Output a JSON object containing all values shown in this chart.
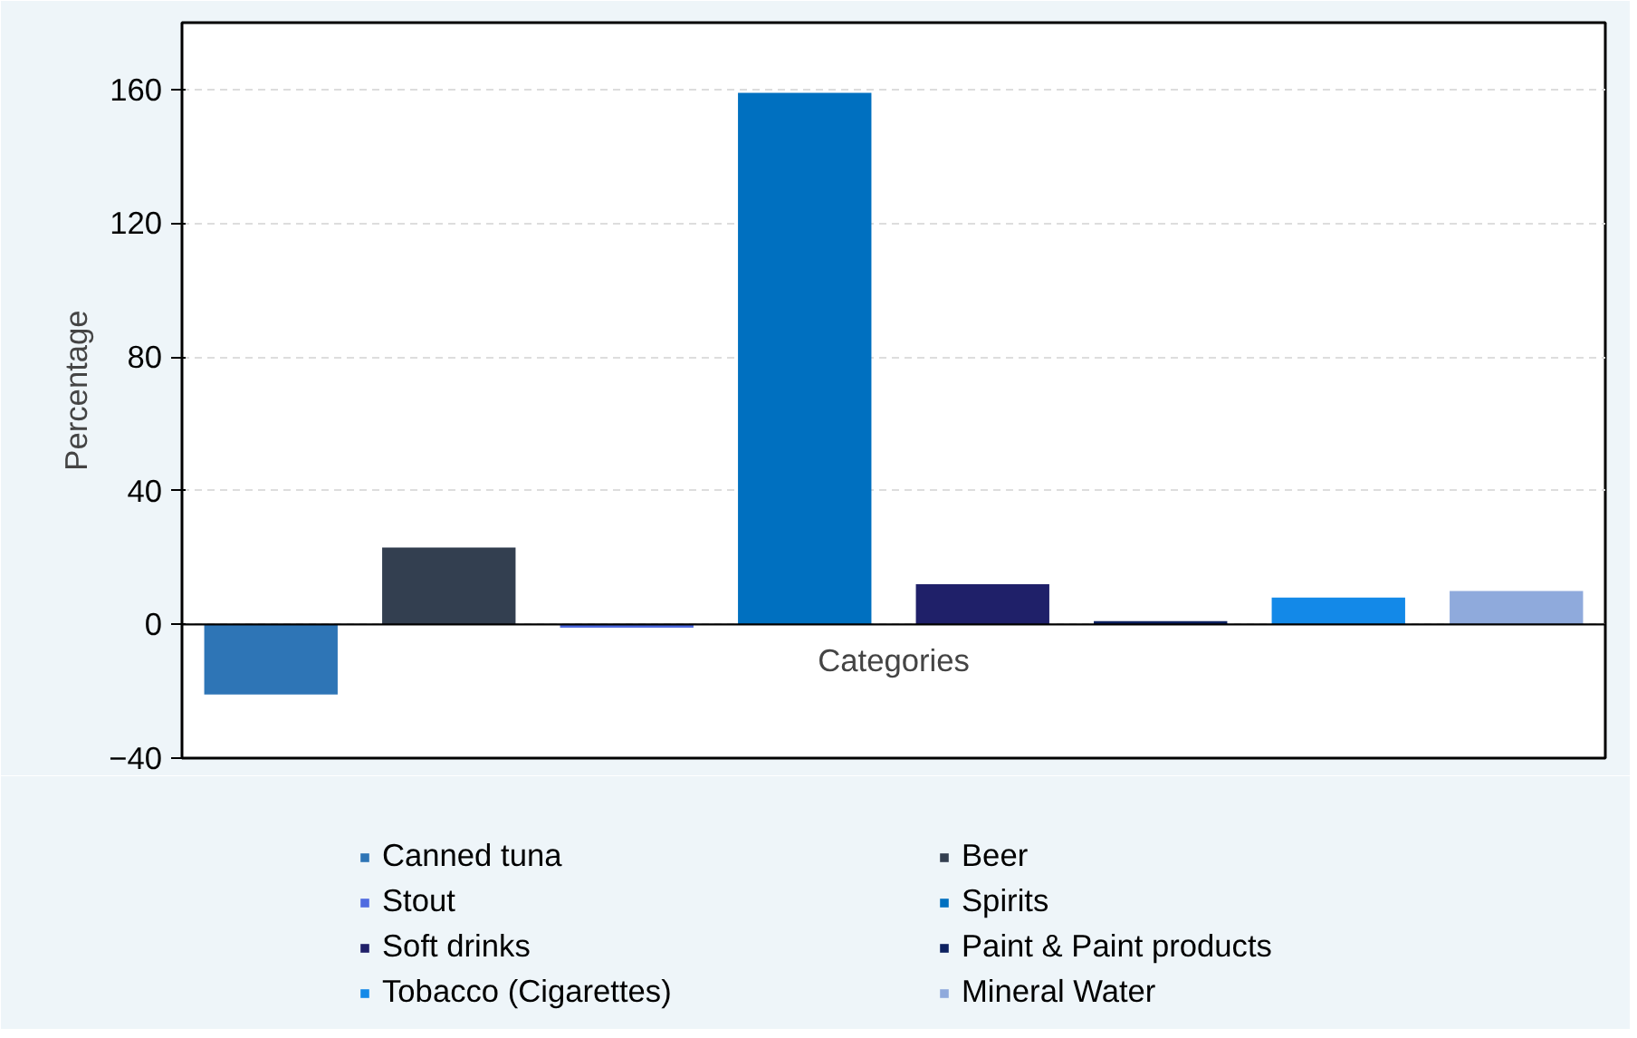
{
  "chart_data": {
    "type": "bar",
    "ylabel": "Percentage",
    "categories": [
      "Categories"
    ],
    "series": [
      {
        "name": "Canned tuna",
        "color": "#2e75b6",
        "values": [
          -21
        ]
      },
      {
        "name": "Beer",
        "color": "#333f50",
        "values": [
          23
        ]
      },
      {
        "name": "Stout",
        "color": "#4f6be0",
        "values": [
          -1
        ]
      },
      {
        "name": "Spirits",
        "color": "#0070c0",
        "values": [
          159
        ]
      },
      {
        "name": "Soft drinks",
        "color": "#1f2069",
        "values": [
          12
        ]
      },
      {
        "name": "Paint & Paint products",
        "color": "#0c2160",
        "values": [
          1
        ]
      },
      {
        "name": "Tobacco (Cigarettes)",
        "color": "#1389e8",
        "values": [
          8
        ]
      },
      {
        "name": "Mineral Water",
        "color": "#8faadc",
        "values": [
          10
        ]
      }
    ],
    "ylim": [
      -40,
      180
    ],
    "yticks": [
      -40,
      0,
      40,
      80,
      120,
      160
    ],
    "grid": "y",
    "legend": "bottom"
  }
}
